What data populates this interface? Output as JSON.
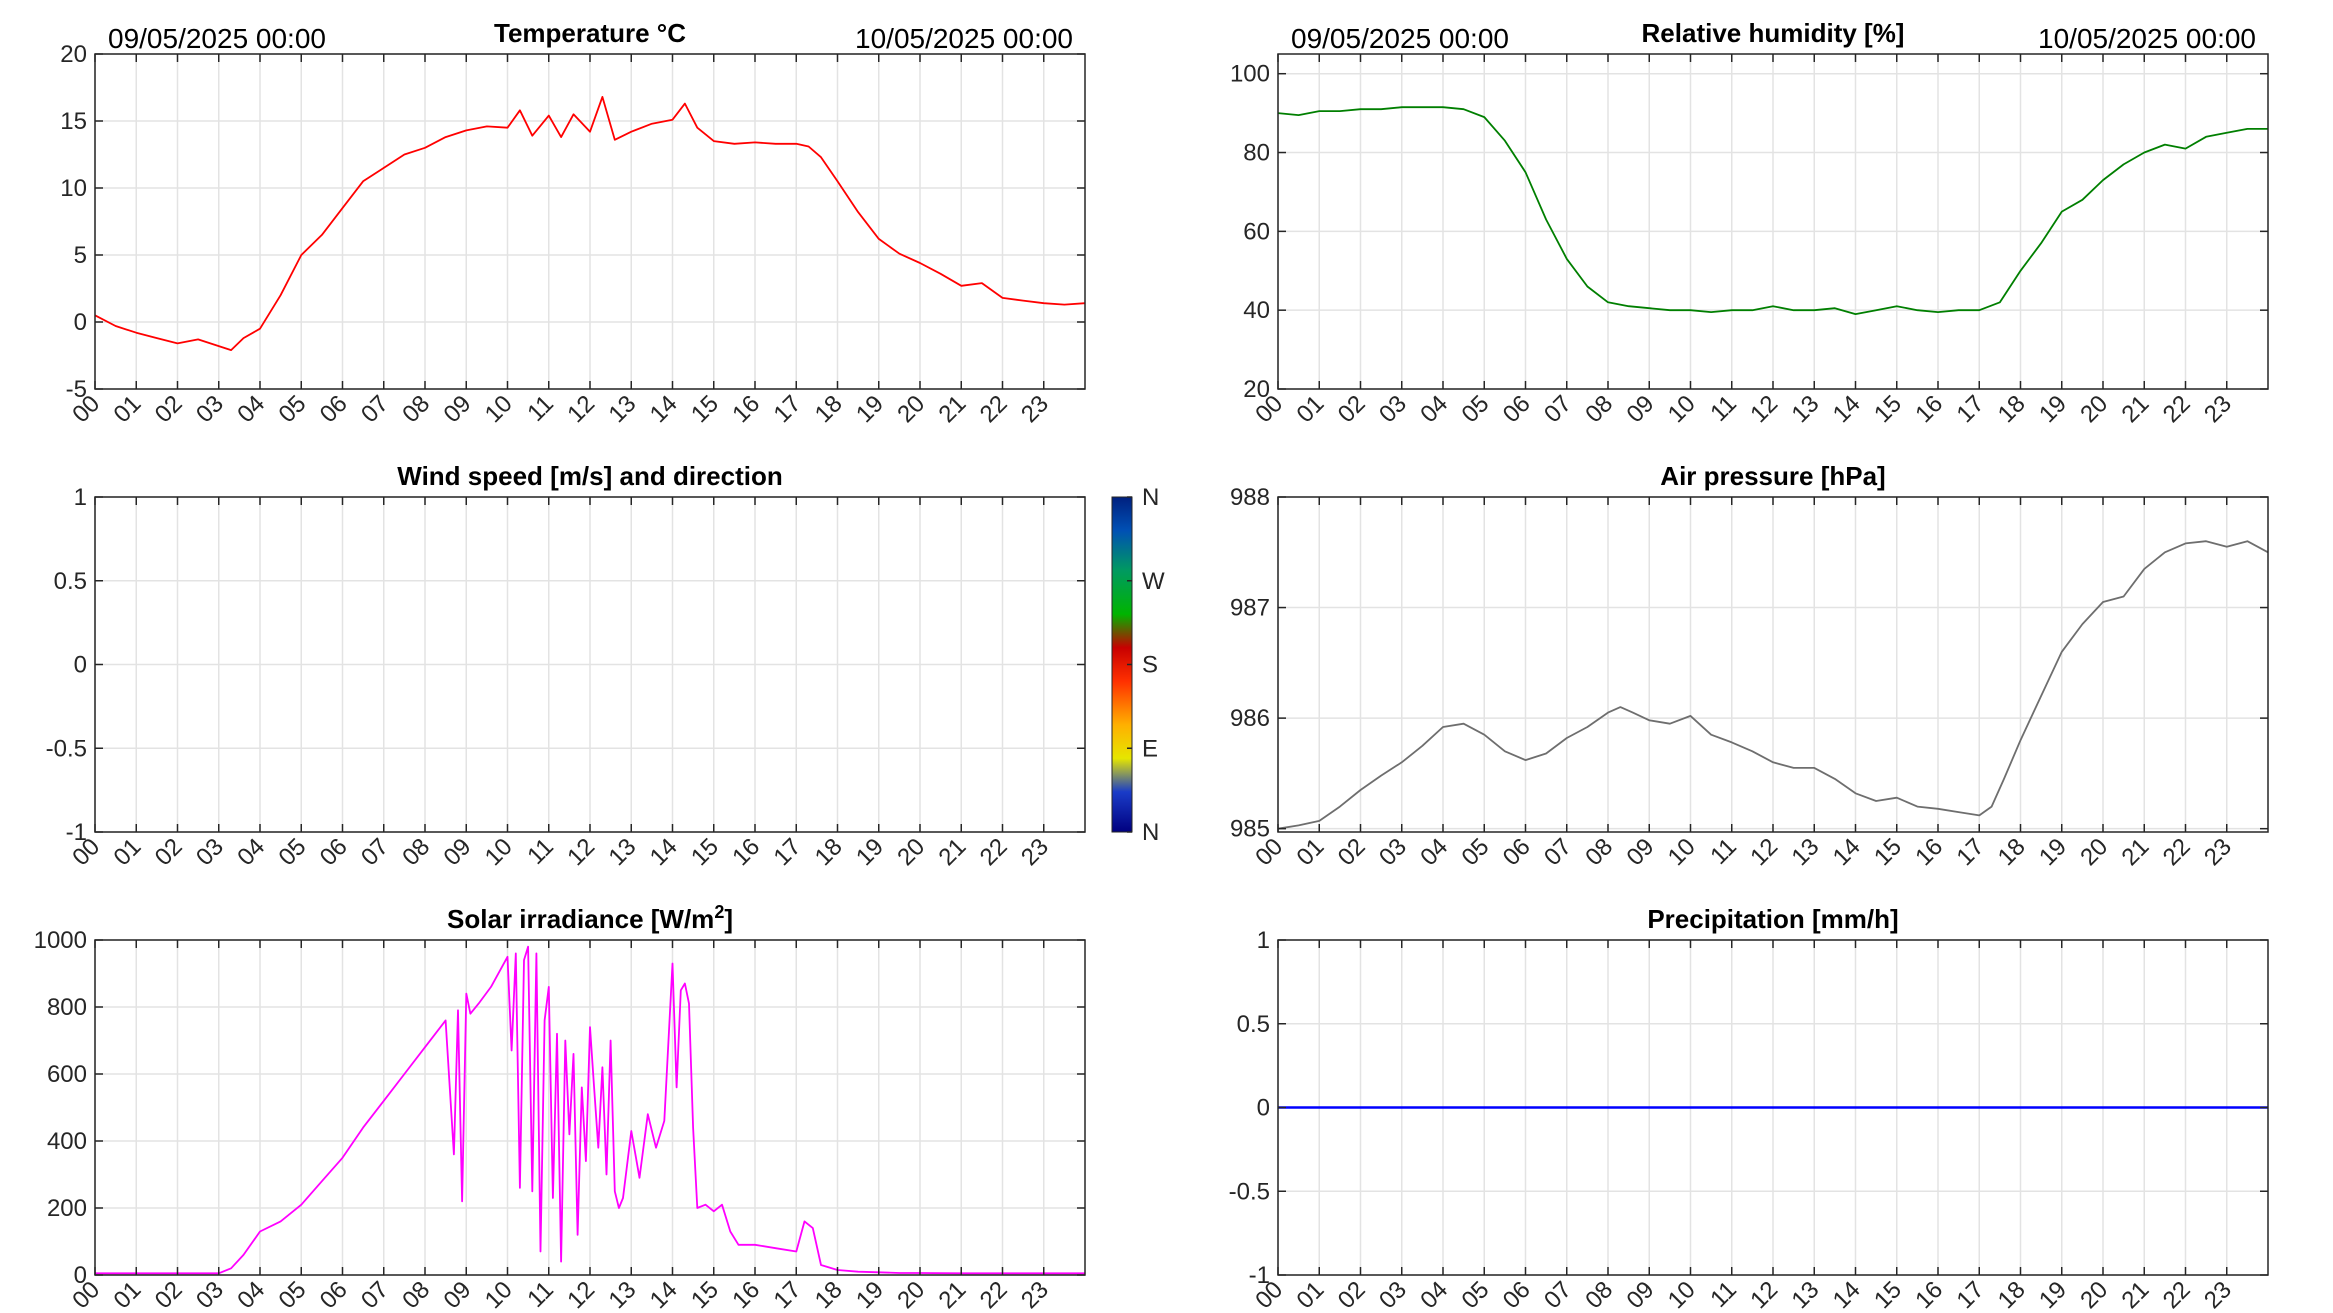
{
  "chart_data": [
    {
      "id": "temperature",
      "type": "line",
      "title": "Temperature °C",
      "date_left": "09/05/2025 00:00",
      "date_right": "10/05/2025 00:00",
      "color": "#ff0000",
      "ylim": [
        -5,
        20
      ],
      "yticks": [
        "-5",
        "0",
        "5",
        "10",
        "15",
        "20"
      ],
      "xticks": [
        "00",
        "01",
        "02",
        "03",
        "04",
        "05",
        "06",
        "07",
        "08",
        "09",
        "10",
        "11",
        "12",
        "13",
        "14",
        "15",
        "16",
        "17",
        "18",
        "19",
        "20",
        "21",
        "22",
        "23"
      ],
      "xlim": [
        0,
        24
      ],
      "grid": true,
      "x": [
        0,
        0.5,
        1,
        1.5,
        2,
        2.5,
        3,
        3.3,
        3.6,
        4,
        4.5,
        5,
        5.5,
        6,
        6.5,
        7,
        7.5,
        8,
        8.5,
        9,
        9.5,
        10,
        10.3,
        10.6,
        11,
        11.3,
        11.6,
        12,
        12.3,
        12.6,
        13,
        13.5,
        14,
        14.3,
        14.6,
        15,
        15.5,
        16,
        16.5,
        17,
        17.3,
        17.6,
        18,
        18.5,
        19,
        19.5,
        20,
        20.5,
        21,
        21.5,
        22,
        22.5,
        23,
        23.5,
        24
      ],
      "y": [
        0.5,
        -0.3,
        -0.8,
        -1.2,
        -1.6,
        -1.3,
        -1.8,
        -2.1,
        -1.2,
        -0.5,
        2,
        5,
        6.5,
        8.5,
        10.5,
        11.5,
        12.5,
        13,
        13.8,
        14.3,
        14.6,
        14.5,
        15.8,
        13.9,
        15.4,
        13.8,
        15.5,
        14.2,
        16.8,
        13.6,
        14.2,
        14.8,
        15.1,
        16.3,
        14.5,
        13.5,
        13.3,
        13.4,
        13.3,
        13.3,
        13.1,
        12.3,
        10.5,
        8.2,
        6.2,
        5.1,
        4.4,
        3.6,
        2.7,
        2.9,
        1.8,
        1.6,
        1.4,
        1.3,
        1.4
      ]
    },
    {
      "id": "humidity",
      "type": "line",
      "title": "Relative humidity [%]",
      "date_left": "09/05/2025 00:00",
      "date_right": "10/05/2025 00:00",
      "color": "#007f00",
      "ylim": [
        20,
        105
      ],
      "yticks": [
        "20",
        "40",
        "60",
        "80",
        "100"
      ],
      "ytick_values": [
        20,
        40,
        60,
        80,
        100
      ],
      "xticks": [
        "00",
        "01",
        "02",
        "03",
        "04",
        "05",
        "06",
        "07",
        "08",
        "09",
        "10",
        "11",
        "12",
        "13",
        "14",
        "15",
        "16",
        "17",
        "18",
        "19",
        "20",
        "21",
        "22",
        "23"
      ],
      "xlim": [
        0,
        24
      ],
      "grid": true,
      "x": [
        0,
        0.5,
        1,
        1.5,
        2,
        2.5,
        3,
        3.5,
        4,
        4.5,
        5,
        5.5,
        6,
        6.5,
        7,
        7.5,
        8,
        8.5,
        9,
        9.5,
        10,
        10.5,
        11,
        11.5,
        12,
        12.5,
        13,
        13.5,
        14,
        14.5,
        15,
        15.5,
        16,
        16.5,
        17,
        17.5,
        18,
        18.5,
        19,
        19.5,
        20,
        20.5,
        21,
        21.5,
        22,
        22.5,
        23,
        23.5,
        24
      ],
      "y": [
        90,
        89.5,
        90.5,
        90.5,
        91,
        91,
        91.5,
        91.5,
        91.5,
        91,
        89,
        83,
        75,
        63,
        53,
        46,
        42,
        41,
        40.5,
        40,
        40,
        39.5,
        40,
        40,
        41,
        40,
        40,
        40.5,
        39,
        40,
        41,
        40,
        39.5,
        40,
        40,
        42,
        50,
        57,
        65,
        68,
        73,
        77,
        80,
        82,
        81,
        84,
        85,
        86,
        86
      ]
    },
    {
      "id": "wind",
      "type": "line",
      "title": "Wind speed [m/s] and direction",
      "ylim": [
        -1,
        1
      ],
      "yticks": [
        "-1",
        "-0.5",
        "0",
        "0.5",
        "1"
      ],
      "ytick_values": [
        -1,
        -0.5,
        0,
        0.5,
        1
      ],
      "xticks": [
        "00",
        "01",
        "02",
        "03",
        "04",
        "05",
        "06",
        "07",
        "08",
        "09",
        "10",
        "11",
        "12",
        "13",
        "14",
        "15",
        "16",
        "17",
        "18",
        "19",
        "20",
        "21",
        "22",
        "23"
      ],
      "xlim": [
        0,
        24
      ],
      "grid": true,
      "colorbar_labels": [
        "N",
        "W",
        "S",
        "E",
        "N"
      ],
      "x": [],
      "y": []
    },
    {
      "id": "pressure",
      "type": "line",
      "title": "Air pressure [hPa]",
      "color": "#6e6e6e",
      "ylim": [
        984.97,
        988
      ],
      "yticks": [
        "985",
        "986",
        "987",
        "988"
      ],
      "ytick_values": [
        985,
        986,
        987,
        988
      ],
      "xticks": [
        "00",
        "01",
        "02",
        "03",
        "04",
        "05",
        "06",
        "07",
        "08",
        "09",
        "10",
        "11",
        "12",
        "13",
        "14",
        "15",
        "16",
        "17",
        "18",
        "19",
        "20",
        "21",
        "22",
        "23"
      ],
      "xlim": [
        0,
        24
      ],
      "grid": true,
      "x": [
        0,
        0.5,
        1,
        1.5,
        2,
        2.5,
        3,
        3.5,
        4,
        4.5,
        5,
        5.5,
        6,
        6.5,
        7,
        7.5,
        8,
        8.3,
        8.6,
        9,
        9.5,
        10,
        10.5,
        11,
        11.5,
        12,
        12.5,
        13,
        13.5,
        14,
        14.5,
        15,
        15.5,
        16,
        16.5,
        17,
        17.3,
        17.6,
        18,
        18.5,
        19,
        19.5,
        20,
        20.5,
        21,
        21.5,
        22,
        22.5,
        23,
        23.5,
        24
      ],
      "y": [
        985,
        985.03,
        985.07,
        985.2,
        985.35,
        985.48,
        985.6,
        985.75,
        985.92,
        985.95,
        985.85,
        985.7,
        985.62,
        985.68,
        985.82,
        985.92,
        986.05,
        986.1,
        986.05,
        985.98,
        985.95,
        986.02,
        985.85,
        985.78,
        985.7,
        985.6,
        985.55,
        985.55,
        985.45,
        985.32,
        985.25,
        985.28,
        985.2,
        985.18,
        985.15,
        985.12,
        985.2,
        985.45,
        985.8,
        986.2,
        986.6,
        986.85,
        987.05,
        987.1,
        987.35,
        987.5,
        987.58,
        987.6,
        987.55,
        987.6,
        987.5
      ]
    },
    {
      "id": "solar",
      "type": "line",
      "title": "Solar irradiance [W/m",
      "title_sup": "2",
      "title_end": "]",
      "color": "#ff00ff",
      "ylim": [
        0,
        1000
      ],
      "yticks": [
        "0",
        "200",
        "400",
        "600",
        "800",
        "1000"
      ],
      "ytick_values": [
        0,
        200,
        400,
        600,
        800,
        1000
      ],
      "xticks": [
        "00",
        "01",
        "02",
        "03",
        "04",
        "05",
        "06",
        "07",
        "08",
        "09",
        "10",
        "11",
        "12",
        "13",
        "14",
        "15",
        "16",
        "17",
        "18",
        "19",
        "20",
        "21",
        "22",
        "23"
      ],
      "xlim": [
        0,
        24
      ],
      "grid": true,
      "x": [
        0,
        1,
        2,
        3,
        3.3,
        3.6,
        4,
        4.5,
        5,
        5.5,
        6,
        6.5,
        7,
        7.5,
        8,
        8.5,
        8.7,
        8.8,
        8.9,
        9,
        9.1,
        9.3,
        9.6,
        10,
        10.1,
        10.2,
        10.3,
        10.4,
        10.5,
        10.6,
        10.7,
        10.8,
        10.9,
        11,
        11.1,
        11.2,
        11.3,
        11.4,
        11.5,
        11.6,
        11.7,
        11.8,
        11.9,
        12,
        12.1,
        12.2,
        12.3,
        12.4,
        12.5,
        12.6,
        12.7,
        12.8,
        13,
        13.2,
        13.4,
        13.6,
        13.8,
        14,
        14.1,
        14.2,
        14.3,
        14.4,
        14.5,
        14.6,
        14.8,
        15,
        15.2,
        15.4,
        15.6,
        16,
        16.5,
        17,
        17.2,
        17.4,
        17.6,
        18,
        18.5,
        19,
        19.5,
        20,
        21,
        22,
        23,
        24
      ],
      "y": [
        5,
        5,
        5,
        5,
        20,
        60,
        130,
        160,
        210,
        280,
        350,
        440,
        520,
        600,
        680,
        760,
        360,
        790,
        220,
        840,
        780,
        810,
        860,
        950,
        670,
        960,
        260,
        940,
        980,
        250,
        960,
        70,
        760,
        860,
        230,
        720,
        40,
        700,
        420,
        660,
        120,
        560,
        340,
        740,
        560,
        380,
        620,
        300,
        700,
        250,
        200,
        230,
        430,
        290,
        480,
        380,
        460,
        930,
        560,
        850,
        870,
        810,
        440,
        200,
        210,
        190,
        210,
        130,
        90,
        90,
        80,
        70,
        160,
        140,
        30,
        15,
        10,
        8,
        6,
        6,
        5,
        5,
        5,
        5
      ]
    },
    {
      "id": "precipitation",
      "type": "line",
      "title": "Precipitation [mm/h]",
      "color": "#0000ff",
      "ylim": [
        -1,
        1
      ],
      "yticks": [
        "-1",
        "-0.5",
        "0",
        "0.5",
        "1"
      ],
      "ytick_values": [
        -1,
        -0.5,
        0,
        0.5,
        1
      ],
      "xticks": [
        "00",
        "01",
        "02",
        "03",
        "04",
        "05",
        "06",
        "07",
        "08",
        "09",
        "10",
        "11",
        "12",
        "13",
        "14",
        "15",
        "16",
        "17",
        "18",
        "19",
        "20",
        "21",
        "22",
        "23"
      ],
      "xlim": [
        0,
        24
      ],
      "grid": true,
      "x": [
        0,
        24
      ],
      "y": [
        0,
        0
      ]
    }
  ]
}
